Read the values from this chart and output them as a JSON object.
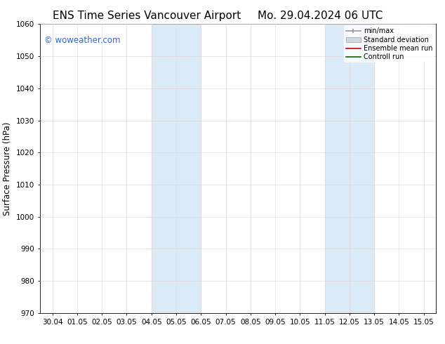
{
  "title_left": "ENS Time Series Vancouver Airport",
  "title_right": "Mo. 29.04.2024 06 UTC",
  "ylabel": "Surface Pressure (hPa)",
  "watermark": "© woweather.com",
  "watermark_color": "#3366cc",
  "ylim": [
    970,
    1060
  ],
  "yticks": [
    970,
    980,
    990,
    1000,
    1010,
    1020,
    1030,
    1040,
    1050,
    1060
  ],
  "xtick_labels": [
    "30.04",
    "01.05",
    "02.05",
    "03.05",
    "04.05",
    "05.05",
    "06.05",
    "07.05",
    "08.05",
    "09.05",
    "10.05",
    "11.05",
    "12.05",
    "13.05",
    "14.05",
    "15.05"
  ],
  "xtick_positions": [
    0,
    1,
    2,
    3,
    4,
    5,
    6,
    7,
    8,
    9,
    10,
    11,
    12,
    13,
    14,
    15
  ],
  "shaded_regions": [
    {
      "xmin": 4.0,
      "xmax": 6.0,
      "color": "#daeaf7"
    },
    {
      "xmin": 11.0,
      "xmax": 13.0,
      "color": "#daeaf7"
    }
  ],
  "background_color": "#ffffff",
  "grid_color": "#dddddd",
  "title_fontsize": 11,
  "axis_fontsize": 8.5,
  "tick_fontsize": 7.5,
  "legend_fontsize": 7,
  "watermark_fontsize": 8.5
}
